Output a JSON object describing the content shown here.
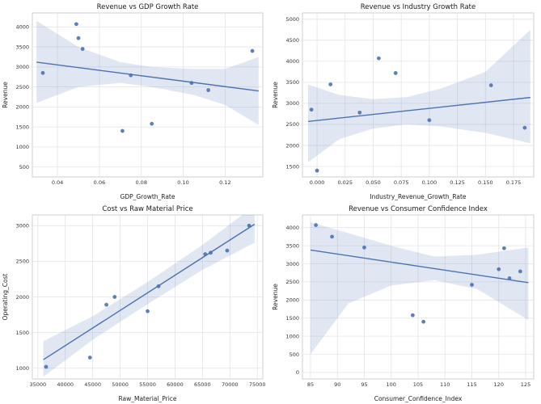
{
  "style": {
    "accent": "#4c72b0",
    "point_color": "#4c72b0",
    "band_color": "#4c72b0",
    "band_opacity": 0.17,
    "grid_color": "#e4e4e8",
    "spine_color": "#cfcfd4",
    "text_color": "#333333",
    "plot_bg": "#ffffff"
  },
  "chart_data": [
    {
      "type": "scatter",
      "title": "Revenue vs GDP Growth Rate",
      "xlabel": "GDP_Growth_Rate",
      "ylabel": "Revenue",
      "xlim": [
        0.028,
        0.138
      ],
      "ylim": [
        250,
        4350
      ],
      "xtick_values": [
        0.04,
        0.06,
        0.08,
        0.1,
        0.12
      ],
      "xtick_labels": [
        "0.04",
        "0.06",
        "0.08",
        "0.10",
        "0.12"
      ],
      "ytick_values": [
        500,
        1000,
        1500,
        2000,
        2500,
        3000,
        3500,
        4000
      ],
      "ytick_labels": [
        "500",
        "1000",
        "1500",
        "2000",
        "2500",
        "3000",
        "3500",
        "4000"
      ],
      "points": [
        [
          0.033,
          2850
        ],
        [
          0.049,
          4070
        ],
        [
          0.05,
          3720
        ],
        [
          0.052,
          3450
        ],
        [
          0.071,
          1400
        ],
        [
          0.075,
          2790
        ],
        [
          0.085,
          1580
        ],
        [
          0.104,
          2600
        ],
        [
          0.112,
          2420
        ],
        [
          0.133,
          3400
        ]
      ],
      "regline": {
        "x": [
          0.03,
          0.136
        ],
        "y": [
          3120,
          2400
        ]
      },
      "band": {
        "x": [
          0.03,
          0.05,
          0.07,
          0.085,
          0.105,
          0.12,
          0.136
        ],
        "upper": [
          4150,
          3500,
          3120,
          3000,
          2950,
          2950,
          3250
        ],
        "lower": [
          2100,
          2500,
          2600,
          2500,
          2300,
          2050,
          1550
        ]
      }
    },
    {
      "type": "scatter",
      "title": "Revenue vs Industry Growth Rate",
      "xlabel": "Industry_Revenue_Growth_Rate",
      "ylabel": "Revenue",
      "xlim": [
        -0.013,
        0.193
      ],
      "ylim": [
        1250,
        5150
      ],
      "xtick_values": [
        0.0,
        0.025,
        0.05,
        0.075,
        0.1,
        0.125,
        0.15,
        0.175
      ],
      "xtick_labels": [
        "0.000",
        "0.025",
        "0.050",
        "0.075",
        "0.100",
        "0.125",
        "0.150",
        "0.175"
      ],
      "ytick_values": [
        1500,
        2000,
        2500,
        3000,
        3500,
        4000,
        4500,
        5000
      ],
      "ytick_labels": [
        "1500",
        "2000",
        "2500",
        "3000",
        "3500",
        "4000",
        "4500",
        "5000"
      ],
      "points": [
        [
          -0.005,
          2850
        ],
        [
          0.0,
          1400
        ],
        [
          0.012,
          3450
        ],
        [
          0.038,
          2780
        ],
        [
          0.055,
          4070
        ],
        [
          0.07,
          3720
        ],
        [
          0.1,
          2600
        ],
        [
          0.155,
          3430
        ],
        [
          0.185,
          2420
        ]
      ],
      "regline": {
        "x": [
          -0.008,
          0.19
        ],
        "y": [
          2570,
          3140
        ]
      },
      "band": {
        "x": [
          -0.008,
          0.02,
          0.05,
          0.08,
          0.11,
          0.15,
          0.19
        ],
        "upper": [
          3450,
          3200,
          3100,
          3150,
          3350,
          3750,
          4750
        ],
        "lower": [
          1600,
          2150,
          2400,
          2500,
          2450,
          2300,
          2050
        ]
      }
    },
    {
      "type": "scatter",
      "title": "Cost vs Raw Material Price",
      "xlabel": "Raw_Material_Price",
      "ylabel": "Operating_Cost",
      "xlim": [
        34000,
        76000
      ],
      "ylim": [
        850,
        3150
      ],
      "xtick_values": [
        35000,
        40000,
        45000,
        50000,
        55000,
        60000,
        65000,
        70000,
        75000
      ],
      "xtick_labels": [
        "35000",
        "40000",
        "45000",
        "50000",
        "55000",
        "60000",
        "65000",
        "70000",
        "75000"
      ],
      "ytick_values": [
        1000,
        1500,
        2000,
        2500,
        3000
      ],
      "ytick_labels": [
        "1000",
        "1500",
        "2000",
        "2500",
        "3000"
      ],
      "points": [
        [
          36500,
          1020
        ],
        [
          44500,
          1150
        ],
        [
          47500,
          1890
        ],
        [
          49000,
          2000
        ],
        [
          55000,
          1800
        ],
        [
          57000,
          2150
        ],
        [
          65500,
          2600
        ],
        [
          66500,
          2620
        ],
        [
          69500,
          2650
        ],
        [
          73500,
          3000
        ]
      ],
      "regline": {
        "x": [
          36000,
          74500
        ],
        "y": [
          1120,
          3020
        ]
      },
      "band": {
        "x": [
          36000,
          45000,
          55000,
          65000,
          74500
        ],
        "upper": [
          1380,
          1730,
          2210,
          2730,
          3280
        ],
        "lower": [
          880,
          1400,
          1900,
          2380,
          2760
        ]
      }
    },
    {
      "type": "scatter",
      "title": "Revenue vs Consumer Confidence Index",
      "xlabel": "Consumer_Confidence_Index",
      "ylabel": "Revenue",
      "xlim": [
        83.5,
        126.5
      ],
      "ylim": [
        -180,
        4350
      ],
      "xtick_values": [
        85,
        90,
        95,
        100,
        105,
        110,
        115,
        120,
        125
      ],
      "xtick_labels": [
        "85",
        "90",
        "95",
        "100",
        "105",
        "110",
        "115",
        "120",
        "125"
      ],
      "ytick_values": [
        0,
        500,
        1000,
        1500,
        2000,
        2500,
        3000,
        3500,
        4000
      ],
      "ytick_labels": [
        "0",
        "500",
        "1000",
        "1500",
        "2000",
        "2500",
        "3000",
        "3500",
        "4000"
      ],
      "points": [
        [
          86,
          4070
        ],
        [
          89,
          3750
        ],
        [
          95,
          3450
        ],
        [
          104,
          1580
        ],
        [
          106,
          1400
        ],
        [
          115,
          2420
        ],
        [
          120,
          2850
        ],
        [
          121,
          3430
        ],
        [
          122,
          2600
        ],
        [
          124,
          2790
        ]
      ],
      "regline": {
        "x": [
          85,
          125.5
        ],
        "y": [
          3380,
          2480
        ]
      },
      "band": {
        "x": [
          85,
          92,
          100,
          108,
          116,
          125.5
        ],
        "upper": [
          4150,
          3850,
          3500,
          3200,
          3250,
          3450
        ],
        "lower": [
          500,
          1900,
          2400,
          2550,
          2300,
          1450
        ]
      }
    }
  ]
}
